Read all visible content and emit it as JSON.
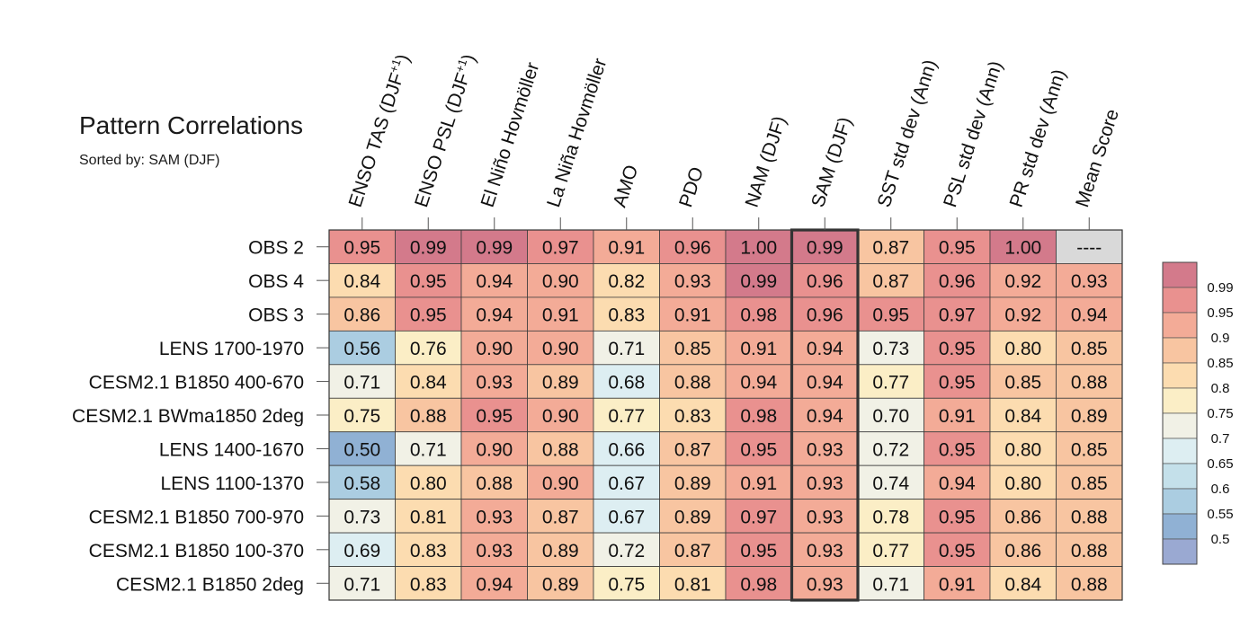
{
  "chart_data": {
    "type": "heatmap",
    "title": "Pattern Correlations",
    "subtitle": "Sorted by: SAM (DJF)",
    "highlight_column": "SAM (DJF)",
    "columns": [
      "ENSO TAS (DJF+1)",
      "ENSO PSL (DJF+1)",
      "El Niño Hovmöller",
      "La Niña Hovmöller",
      "AMO",
      "PDO",
      "NAM (DJF)",
      "SAM (DJF)",
      "SST std dev (Ann)",
      "PSL std dev (Ann)",
      "PR std dev (Ann)",
      "Mean Score"
    ],
    "rows": [
      "OBS 2",
      "OBS 4",
      "OBS 3",
      "LENS 1700-1970",
      "CESM2.1 B1850 400-670",
      "CESM2.1 BWma1850 2deg",
      "LENS 1400-1670",
      "LENS 1100-1370",
      "CESM2.1 B1850 700-970",
      "CESM2.1 B1850 100-370",
      "CESM2.1 B1850 2deg"
    ],
    "values": [
      [
        "0.95",
        "0.99",
        "0.99",
        "0.97",
        "0.91",
        "0.96",
        "1.00",
        "0.99",
        "0.87",
        "0.95",
        "1.00",
        "----"
      ],
      [
        "0.84",
        "0.95",
        "0.94",
        "0.90",
        "0.82",
        "0.93",
        "0.99",
        "0.96",
        "0.87",
        "0.96",
        "0.92",
        "0.93"
      ],
      [
        "0.86",
        "0.95",
        "0.94",
        "0.91",
        "0.83",
        "0.91",
        "0.98",
        "0.96",
        "0.95",
        "0.97",
        "0.92",
        "0.94"
      ],
      [
        "0.56",
        "0.76",
        "0.90",
        "0.90",
        "0.71",
        "0.85",
        "0.91",
        "0.94",
        "0.73",
        "0.95",
        "0.80",
        "0.85"
      ],
      [
        "0.71",
        "0.84",
        "0.93",
        "0.89",
        "0.68",
        "0.88",
        "0.94",
        "0.94",
        "0.77",
        "0.95",
        "0.85",
        "0.88"
      ],
      [
        "0.75",
        "0.88",
        "0.95",
        "0.90",
        "0.77",
        "0.83",
        "0.98",
        "0.94",
        "0.70",
        "0.91",
        "0.84",
        "0.89"
      ],
      [
        "0.50",
        "0.71",
        "0.90",
        "0.88",
        "0.66",
        "0.87",
        "0.95",
        "0.93",
        "0.72",
        "0.95",
        "0.80",
        "0.85"
      ],
      [
        "0.58",
        "0.80",
        "0.88",
        "0.90",
        "0.67",
        "0.89",
        "0.91",
        "0.93",
        "0.74",
        "0.94",
        "0.80",
        "0.85"
      ],
      [
        "0.73",
        "0.81",
        "0.93",
        "0.87",
        "0.67",
        "0.89",
        "0.97",
        "0.93",
        "0.78",
        "0.95",
        "0.86",
        "0.88"
      ],
      [
        "0.69",
        "0.83",
        "0.93",
        "0.89",
        "0.72",
        "0.87",
        "0.95",
        "0.93",
        "0.77",
        "0.95",
        "0.86",
        "0.88"
      ],
      [
        "0.71",
        "0.83",
        "0.94",
        "0.89",
        "0.75",
        "0.81",
        "0.98",
        "0.93",
        "0.71",
        "0.91",
        "0.84",
        "0.88"
      ]
    ],
    "colorbar": {
      "ticks": [
        "0.99",
        "0.95",
        "0.9",
        "0.85",
        "0.8",
        "0.75",
        "0.7",
        "0.65",
        "0.6",
        "0.55",
        "0.5"
      ],
      "colors_top_to_bottom": [
        "#d37a8b",
        "#e9918f",
        "#f3ab97",
        "#f8c5a1",
        "#fcdcb0",
        "#fbeec6",
        "#f1f1e6",
        "#ddeef2",
        "#c4e0ea",
        "#abcde1",
        "#90b1d4",
        "#9aa9d2"
      ],
      "missing_color": "#d9d9d9"
    }
  }
}
